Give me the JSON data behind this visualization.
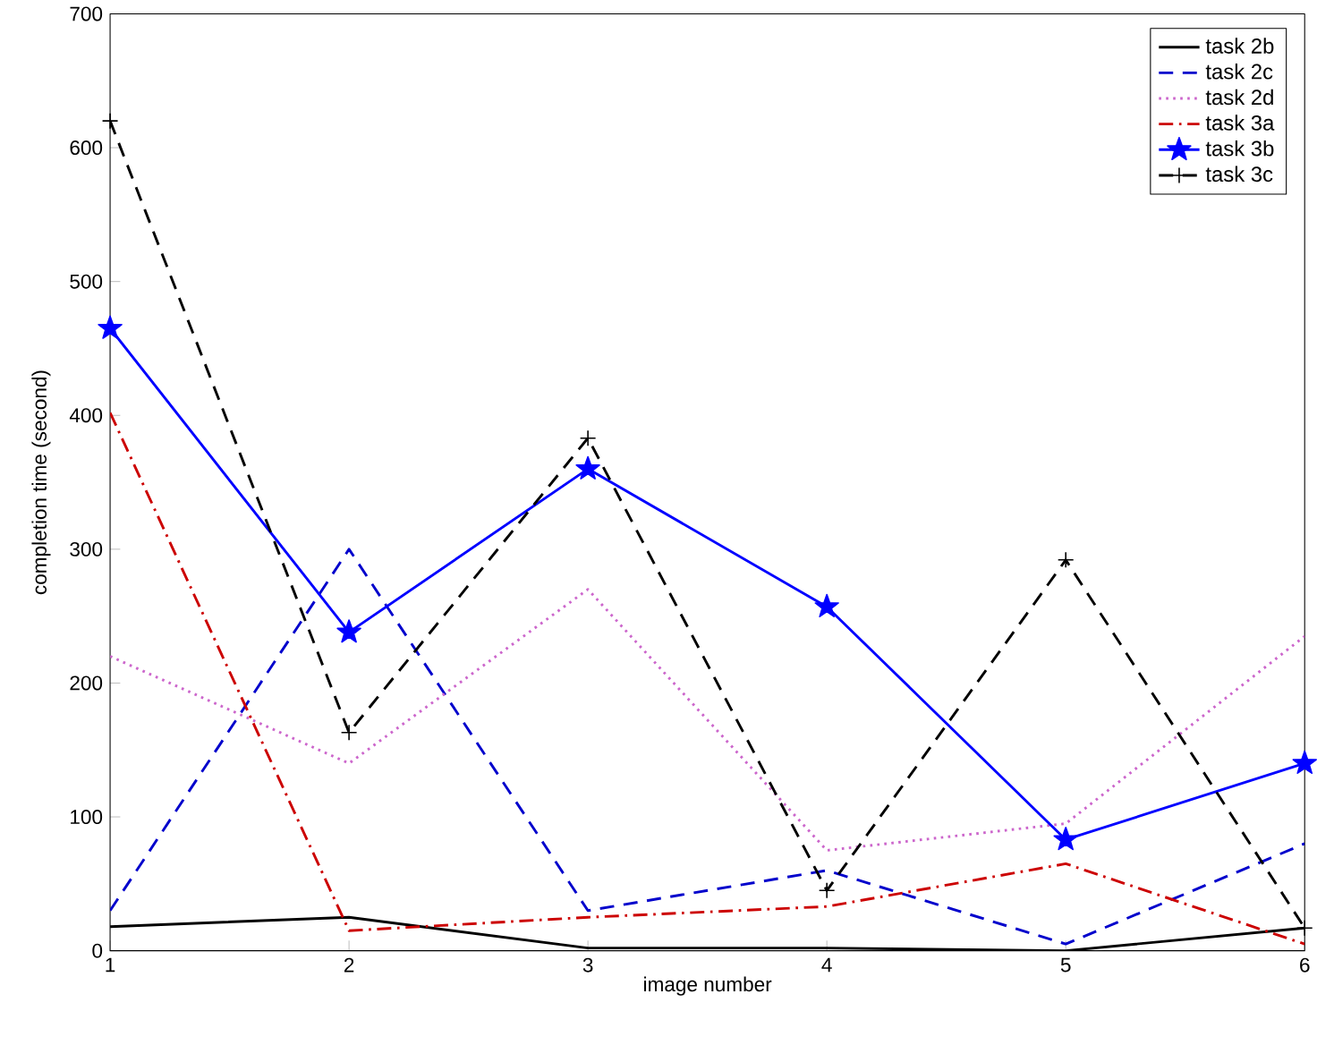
{
  "chart_data": {
    "type": "line",
    "xlabel": "image number",
    "ylabel": "completion time (second)",
    "x": [
      1,
      2,
      3,
      4,
      5,
      6
    ],
    "xlim": [
      1,
      6
    ],
    "xticks": [
      1,
      2,
      3,
      4,
      5,
      6
    ],
    "ylim": [
      0,
      700
    ],
    "yticks": [
      0,
      100,
      200,
      300,
      400,
      500,
      600,
      700
    ],
    "grid": false,
    "legend": "top right",
    "series": [
      {
        "name": "task 2b",
        "color": "#000000",
        "line_style": "solid",
        "marker": "none",
        "values": [
          18,
          25,
          2,
          2,
          0,
          17
        ]
      },
      {
        "name": "task 2c",
        "color": "#0000cc",
        "line_style": "dashed",
        "marker": "none",
        "values": [
          30,
          300,
          30,
          60,
          5,
          80
        ]
      },
      {
        "name": "task 2d",
        "color": "#cc66cc",
        "line_style": "dotted",
        "marker": "none",
        "values": [
          220,
          140,
          270,
          75,
          95,
          235
        ]
      },
      {
        "name": "task 3a",
        "color": "#cc0000",
        "line_style": "dashdot",
        "marker": "none",
        "values": [
          402,
          15,
          25,
          33,
          65,
          5
        ]
      },
      {
        "name": "task 3b",
        "color": "#0000ff",
        "line_style": "solid",
        "marker": "star",
        "values": [
          465,
          238,
          360,
          257,
          83,
          140
        ]
      },
      {
        "name": "task 3c",
        "color": "#000000",
        "line_style": "dashed",
        "marker": "cross",
        "values": [
          620,
          163,
          383,
          45,
          292,
          17
        ]
      }
    ]
  }
}
